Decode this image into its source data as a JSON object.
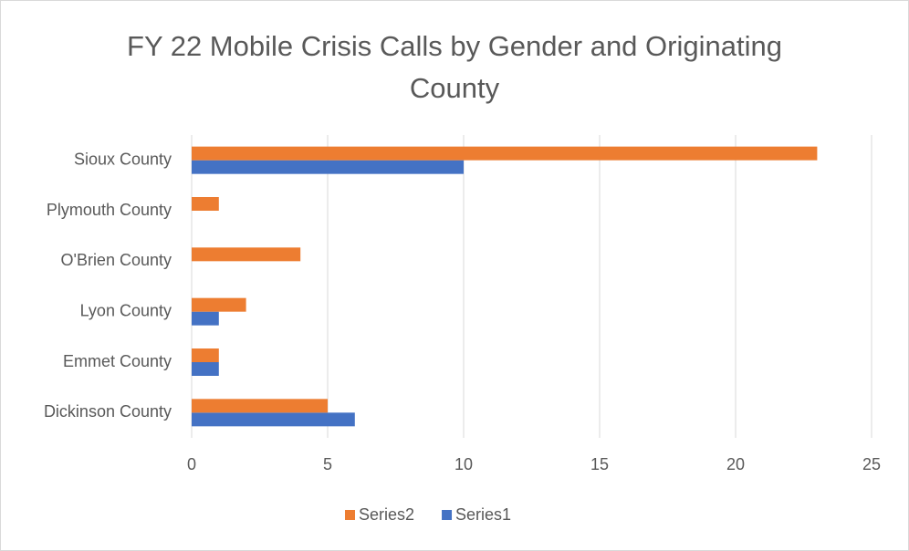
{
  "chart_data": {
    "type": "barh",
    "title": "FY 22 Mobile Crisis Calls by Gender and Originating County",
    "categories": [
      "Dickinson County",
      "Emmet County",
      "Lyon County",
      "O'Brien County",
      "Plymouth County",
      "Sioux County"
    ],
    "series": [
      {
        "name": "Series1",
        "color": "#4472c4",
        "values": [
          6,
          1,
          1,
          0,
          0,
          10
        ]
      },
      {
        "name": "Series2",
        "color": "#ed7d31",
        "values": [
          5,
          1,
          2,
          4,
          1,
          23
        ]
      }
    ],
    "xlim": [
      0,
      25
    ],
    "xticks": [
      0,
      5,
      10,
      15,
      20,
      25
    ],
    "grid": true,
    "legend": "bottom"
  }
}
